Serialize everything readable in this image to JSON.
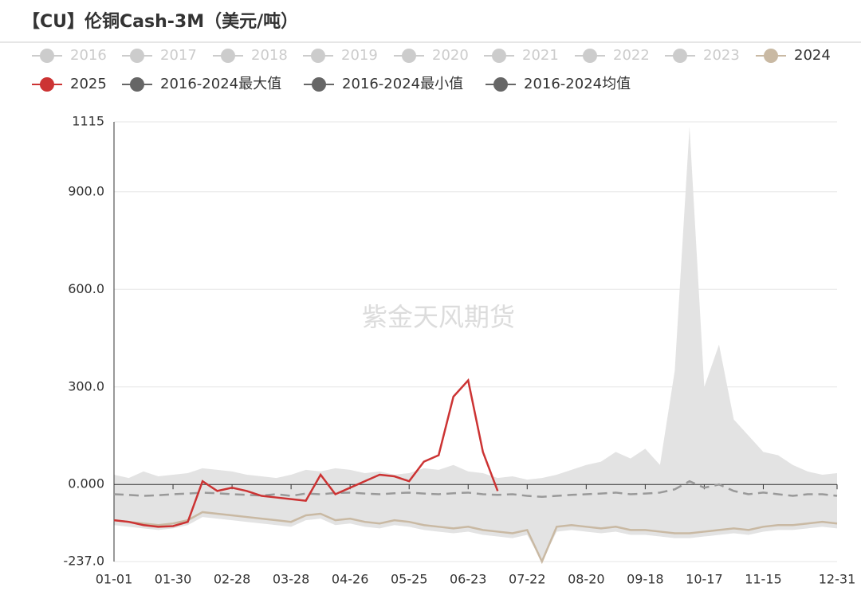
{
  "chart_data": {
    "type": "line",
    "title": "【CU】伦铜Cash-3M（美元/吨）",
    "watermark": "紫金天风期货",
    "categories": [
      "01-01",
      null,
      null,
      null,
      "01-30",
      null,
      null,
      null,
      "02-28",
      null,
      null,
      null,
      "03-28",
      null,
      null,
      null,
      "04-26",
      null,
      null,
      null,
      "05-25",
      null,
      null,
      null,
      "06-23",
      null,
      null,
      null,
      "07-22",
      null,
      null,
      null,
      "08-20",
      null,
      null,
      null,
      "09-18",
      null,
      null,
      null,
      "10-17",
      null,
      null,
      null,
      "11-15",
      null,
      null,
      null,
      null,
      "12-31"
    ],
    "ylim": [
      -237,
      1115
    ],
    "yticks": [
      {
        "value": -237,
        "label": "-237.0"
      },
      {
        "value": 0,
        "label": "0.000"
      },
      {
        "value": 300,
        "label": "300.0"
      },
      {
        "value": 600,
        "label": "600.0"
      },
      {
        "value": 900,
        "label": "900.0"
      },
      1115
    ],
    "grid": true,
    "series": [
      {
        "name": "2016",
        "color": "#cccccc",
        "hidden": true
      },
      {
        "name": "2017",
        "color": "#cccccc",
        "hidden": true
      },
      {
        "name": "2018",
        "color": "#cccccc",
        "hidden": true
      },
      {
        "name": "2019",
        "color": "#cccccc",
        "hidden": true
      },
      {
        "name": "2020",
        "color": "#cccccc",
        "hidden": true
      },
      {
        "name": "2021",
        "color": "#cccccc",
        "hidden": true
      },
      {
        "name": "2022",
        "color": "#cccccc",
        "hidden": true
      },
      {
        "name": "2023",
        "color": "#cccccc",
        "hidden": true
      },
      {
        "name": "2024",
        "color": "#c9b9a3",
        "values": [
          -110,
          -115,
          -120,
          -125,
          -120,
          -110,
          -85,
          -90,
          -95,
          -100,
          -105,
          -110,
          -115,
          -95,
          -90,
          -110,
          -105,
          -115,
          -120,
          -110,
          -115,
          -125,
          -130,
          -135,
          -130,
          -140,
          -145,
          -150,
          -140,
          -237,
          -130,
          -125,
          -130,
          -135,
          -130,
          -140,
          -140,
          -145,
          -150,
          -150,
          -145,
          -140,
          -135,
          -140,
          -130,
          -125,
          -125,
          -120,
          -115,
          -120
        ]
      },
      {
        "name": "2025",
        "color": "#cc3333",
        "values": [
          -110,
          -115,
          -125,
          -130,
          -128,
          -115,
          10,
          -20,
          -10,
          -20,
          -35,
          -40,
          -45,
          -50,
          30,
          -30,
          -10,
          10,
          30,
          25,
          10,
          70,
          90,
          270,
          320,
          100,
          -20,
          null,
          null,
          null,
          null,
          null,
          null,
          null,
          null,
          null,
          null,
          null,
          null,
          null,
          null,
          null,
          null,
          null,
          null,
          null,
          null,
          null,
          null,
          null
        ]
      },
      {
        "name": "2016-2024最大值",
        "color": "#666666",
        "role": "max",
        "values": [
          30,
          20,
          40,
          25,
          30,
          35,
          50,
          45,
          40,
          30,
          25,
          20,
          30,
          45,
          40,
          50,
          45,
          35,
          40,
          30,
          35,
          50,
          45,
          60,
          40,
          35,
          20,
          25,
          15,
          20,
          30,
          45,
          60,
          70,
          100,
          80,
          110,
          60,
          350,
          1100,
          300,
          430,
          200,
          150,
          100,
          90,
          60,
          40,
          30,
          35
        ]
      },
      {
        "name": "2016-2024最小值",
        "color": "#666666",
        "role": "min",
        "values": [
          -125,
          -130,
          -135,
          -140,
          -135,
          -125,
          -100,
          -105,
          -110,
          -115,
          -120,
          -125,
          -130,
          -110,
          -105,
          -125,
          -120,
          -130,
          -135,
          -125,
          -130,
          -140,
          -145,
          -150,
          -145,
          -155,
          -160,
          -165,
          -155,
          -237,
          -145,
          -140,
          -145,
          -150,
          -145,
          -155,
          -155,
          -160,
          -165,
          -165,
          -160,
          -155,
          -150,
          -155,
          -145,
          -140,
          -140,
          -135,
          -130,
          -135
        ]
      },
      {
        "name": "2016-2024均值",
        "color": "#666666",
        "role": "mean",
        "values": [
          -30,
          -32,
          -35,
          -33,
          -30,
          -28,
          -25,
          -27,
          -30,
          -32,
          -34,
          -30,
          -35,
          -28,
          -30,
          -26,
          -25,
          -28,
          -30,
          -27,
          -25,
          -28,
          -30,
          -27,
          -25,
          -30,
          -32,
          -30,
          -35,
          -38,
          -35,
          -32,
          -30,
          -28,
          -25,
          -30,
          -28,
          -25,
          -15,
          10,
          -10,
          0,
          -20,
          -30,
          -25,
          -30,
          -35,
          -30,
          -30,
          -35
        ]
      }
    ]
  }
}
